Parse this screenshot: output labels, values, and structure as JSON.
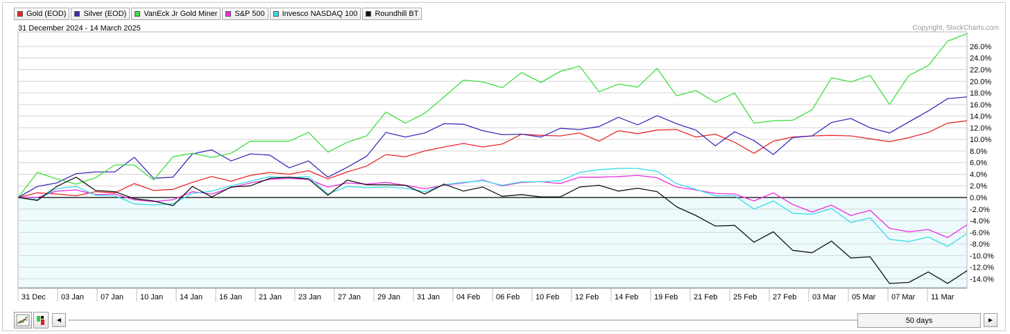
{
  "legend": [
    {
      "label": "Gold (EOD)",
      "color": "#e8262a"
    },
    {
      "label": "Silver (EOD)",
      "color": "#3b2bb5"
    },
    {
      "label": "VanEck Jr Gold Miner",
      "color": "#3dde3d"
    },
    {
      "label": "S&P 500",
      "color": "#ee2be0"
    },
    {
      "label": "Invesco NASDAQ 100",
      "color": "#35dbe6"
    },
    {
      "label": "Roundhill BT",
      "color": "#111111"
    }
  ],
  "date_range": "31 December 2024 - 14 March 2025",
  "copyright": "Copyright, StockCharts.com",
  "controls": {
    "scroll_left": "◄",
    "scroll_right": "►",
    "range_label": "50 days"
  },
  "chart_data": {
    "type": "line",
    "title": "",
    "xlabel": "",
    "ylabel": "",
    "y_unit": "%",
    "ylim": [
      -15.5,
      28.5
    ],
    "grid": true,
    "legend_position": "top-left",
    "zero_line": true,
    "x_tick_labels": [
      "31 Dec",
      "03 Jan",
      "07 Jan",
      "10 Jan",
      "14 Jan",
      "16 Jan",
      "21 Jan",
      "23 Jan",
      "27 Jan",
      "29 Jan",
      "31 Jan",
      "04 Feb",
      "06 Feb",
      "10 Feb",
      "12 Feb",
      "14 Feb",
      "19 Feb",
      "21 Feb",
      "25 Feb",
      "27 Feb",
      "03 Mar",
      "05 Mar",
      "07 Mar",
      "11 Mar"
    ],
    "y_ticks": [
      -14,
      -12,
      -10,
      -8,
      -6,
      -4,
      -2,
      0,
      2,
      4,
      6,
      8,
      10,
      12,
      14,
      16,
      18,
      20,
      22,
      24,
      26
    ],
    "y_tick_labels": [
      "-14.0%",
      "-12.0%",
      "-10.0%",
      "-8.0%",
      "-6.0%",
      "-4.0%",
      "-2.0%",
      "0.0%",
      "2.0%",
      "4.0%",
      "6.0%",
      "8.0%",
      "10.0%",
      "12.0%",
      "14.0%",
      "16.0%",
      "18.0%",
      "20.0%",
      "22.0%",
      "24.0%",
      "26.0%"
    ],
    "x": [
      "12-31",
      "01-02",
      "01-03",
      "01-06",
      "01-07",
      "01-08",
      "01-10",
      "01-13",
      "01-14",
      "01-15",
      "01-16",
      "01-17",
      "01-21",
      "01-22",
      "01-23",
      "01-24",
      "01-27",
      "01-28",
      "01-29",
      "01-30",
      "01-31",
      "02-03",
      "02-04",
      "02-05",
      "02-06",
      "02-07",
      "02-10",
      "02-11",
      "02-12",
      "02-13",
      "02-14",
      "02-18",
      "02-19",
      "02-20",
      "02-21",
      "02-24",
      "02-25",
      "02-26",
      "02-27",
      "02-28",
      "03-03",
      "03-04",
      "03-05",
      "03-06",
      "03-07",
      "03-10",
      "03-11",
      "03-12",
      "03-13",
      "03-14"
    ],
    "series": [
      {
        "name": "Gold (EOD)",
        "color": "#e8262a",
        "values": [
          0.0,
          0.8,
          0.6,
          0.3,
          1.0,
          0.8,
          2.4,
          1.2,
          1.4,
          2.6,
          3.6,
          2.8,
          3.8,
          4.3,
          4.0,
          4.6,
          3.2,
          4.4,
          5.4,
          7.4,
          7.0,
          8.0,
          8.7,
          9.3,
          8.7,
          9.2,
          10.9,
          10.7,
          10.6,
          11.1,
          9.7,
          11.5,
          11.0,
          11.6,
          11.7,
          10.4,
          10.9,
          9.5,
          7.6,
          9.7,
          10.4,
          10.6,
          10.7,
          10.6,
          10.1,
          9.6,
          10.3,
          11.2,
          12.8,
          13.2
        ]
      },
      {
        "name": "Silver (EOD)",
        "color": "#3b2bb5",
        "values": [
          0.0,
          1.9,
          2.5,
          4.1,
          4.4,
          4.4,
          6.9,
          3.3,
          3.5,
          7.5,
          8.2,
          6.3,
          7.5,
          7.3,
          5.1,
          6.3,
          3.5,
          5.2,
          7.1,
          11.2,
          10.4,
          11.1,
          12.7,
          12.6,
          11.5,
          10.8,
          10.9,
          10.4,
          11.9,
          11.7,
          12.2,
          13.8,
          12.5,
          14.1,
          12.7,
          11.6,
          8.9,
          11.3,
          9.8,
          7.4,
          10.3,
          10.6,
          12.9,
          13.6,
          12.0,
          11.1,
          13.0,
          14.9,
          17.0,
          17.3
        ]
      },
      {
        "name": "VanEck Jr Gold Miner",
        "color": "#3dde3d",
        "values": [
          0.0,
          4.3,
          3.2,
          2.3,
          3.4,
          5.6,
          5.6,
          3.0,
          7.0,
          7.6,
          6.9,
          7.6,
          9.7,
          9.7,
          9.7,
          11.2,
          7.8,
          9.5,
          10.6,
          14.7,
          12.8,
          14.5,
          17.3,
          20.2,
          19.9,
          18.9,
          21.5,
          19.8,
          21.7,
          22.6,
          18.2,
          19.5,
          19.0,
          22.2,
          17.5,
          18.4,
          16.4,
          18.0,
          12.8,
          13.2,
          13.3,
          15.1,
          20.6,
          19.9,
          21.0,
          16.0,
          21.0,
          22.7,
          26.9,
          28.2
        ]
      },
      {
        "name": "S&P 500",
        "color": "#ee2be0",
        "values": [
          0.0,
          0.0,
          1.1,
          1.3,
          0.5,
          0.6,
          -0.4,
          -0.7,
          -0.4,
          1.0,
          0.6,
          1.7,
          2.5,
          3.1,
          3.3,
          3.1,
          1.8,
          2.5,
          2.3,
          2.6,
          2.1,
          1.5,
          2.1,
          2.5,
          3.0,
          2.0,
          2.6,
          2.7,
          2.4,
          3.5,
          3.5,
          3.6,
          3.8,
          3.4,
          1.8,
          1.3,
          0.7,
          0.6,
          -0.6,
          0.8,
          -1.2,
          -2.5,
          -1.3,
          -3.1,
          -2.2,
          -5.3,
          -5.9,
          -5.5,
          -6.9,
          -4.7
        ]
      },
      {
        "name": "Invesco NASDAQ 100",
        "color": "#35dbe6",
        "values": [
          0.0,
          -0.4,
          1.5,
          1.9,
          0.4,
          0.3,
          -1.1,
          -1.3,
          -1.1,
          0.7,
          1.1,
          2.0,
          2.8,
          3.6,
          3.4,
          3.6,
          0.6,
          1.9,
          1.7,
          1.8,
          1.6,
          1.0,
          2.2,
          2.6,
          2.9,
          2.1,
          2.7,
          2.7,
          2.9,
          4.3,
          4.8,
          5.0,
          5.0,
          4.5,
          2.4,
          1.4,
          0.3,
          0.3,
          -2.0,
          -0.6,
          -2.7,
          -2.9,
          -1.9,
          -4.3,
          -3.5,
          -7.2,
          -7.6,
          -6.8,
          -8.4,
          -6.2
        ]
      },
      {
        "name": "Roundhill BT",
        "color": "#111111",
        "values": [
          0.0,
          -0.5,
          1.9,
          3.5,
          1.2,
          1.0,
          -0.2,
          -0.6,
          -1.4,
          1.9,
          0.1,
          1.8,
          2.0,
          3.3,
          3.5,
          3.2,
          0.4,
          3.0,
          2.2,
          2.2,
          2.1,
          0.6,
          2.3,
          1.1,
          1.8,
          0.2,
          0.5,
          0.1,
          0.1,
          1.8,
          2.1,
          1.1,
          1.6,
          1.0,
          -1.6,
          -3.1,
          -4.9,
          -4.8,
          -7.7,
          -5.9,
          -9.1,
          -9.5,
          -7.5,
          -10.4,
          -10.2,
          -14.8,
          -14.6,
          -12.8,
          -14.8,
          -12.6
        ]
      }
    ]
  }
}
